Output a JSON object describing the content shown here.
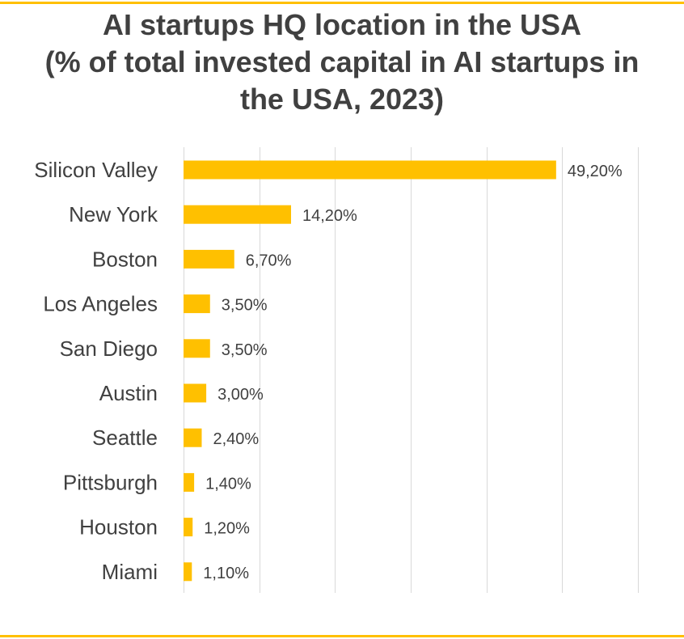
{
  "colors": {
    "bar": "#FFC000",
    "frame": "#FFC000",
    "grid": "#d9d9d9",
    "text": "#404040",
    "title": "#404040"
  },
  "chart_data": {
    "type": "bar",
    "orientation": "horizontal",
    "title_lines": [
      "AI startups HQ location in the USA",
      "(% of total invested capital in AI startups in",
      "the USA, 2023)"
    ],
    "categories": [
      "Silicon Valley",
      "New York",
      "Boston",
      "Los Angeles",
      "San Diego",
      "Austin",
      "Seattle",
      "Pittsburgh",
      "Houston",
      "Miami"
    ],
    "values": [
      49.2,
      14.2,
      6.7,
      3.5,
      3.5,
      3.0,
      2.4,
      1.4,
      1.2,
      1.1
    ],
    "data_labels": [
      "49,20%",
      "14,20%",
      "6,70%",
      "3,50%",
      "3,50%",
      "3,00%",
      "2,40%",
      "1,40%",
      "1,20%",
      "1,10%"
    ],
    "xlim": [
      0,
      60
    ],
    "grid": true,
    "gridline_step": 10,
    "legend": "none",
    "xlabel": "",
    "ylabel": ""
  }
}
